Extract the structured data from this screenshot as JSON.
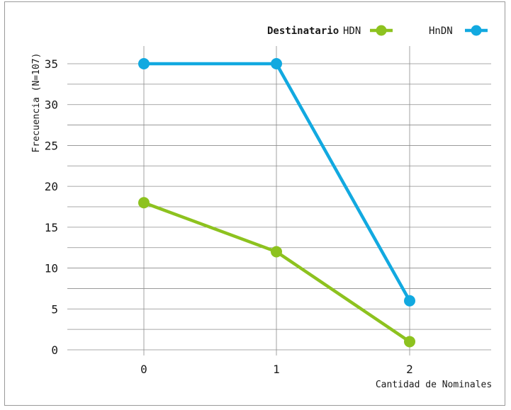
{
  "chart_data": {
    "type": "line",
    "title": "",
    "xlabel": "Cantidad de Nominales",
    "ylabel": "Frecuencia (N=107)",
    "x": [
      "0",
      "1",
      "2"
    ],
    "ylim": [
      0,
      35
    ],
    "y_ticks": [
      0,
      5,
      10,
      15,
      20,
      25,
      30,
      35
    ],
    "grid": true,
    "legend_title": "Destinatario",
    "legend_position": "top-right",
    "series": [
      {
        "name": "HDN",
        "color": "#8dc21f",
        "values": [
          18,
          12,
          1
        ]
      },
      {
        "name": "HnDN",
        "color": "#12a9e0",
        "values": [
          35,
          35,
          6
        ]
      }
    ]
  }
}
